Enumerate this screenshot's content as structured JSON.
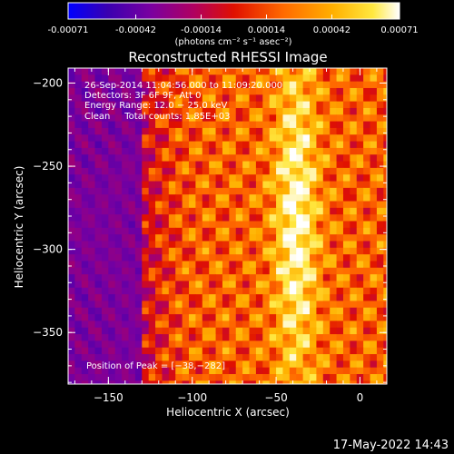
{
  "colorbar": {
    "tick_labels": [
      "-0.00071",
      "-0.00042",
      "-0.00014",
      "0.00014",
      "0.00042",
      "0.00071"
    ],
    "unit_label": "(photons cm⁻² s⁻¹ asec⁻²)",
    "range": [
      -0.00071,
      0.00071
    ]
  },
  "colors": {
    "background": "#000000",
    "text": "#ffffff",
    "colormap": [
      "#0000ff",
      "#3a00b0",
      "#7a00a0",
      "#b00060",
      "#e01000",
      "#ff6a00",
      "#ffb000",
      "#ffe840",
      "#ffffff"
    ]
  },
  "chart_data": {
    "type": "heatmap",
    "title": "Reconstructed RHESSI Image",
    "xlabel": "Heliocentric X (arcsec)",
    "ylabel": "Heliocentric Y (arcsec)",
    "xlim": [
      -174,
      16
    ],
    "ylim": [
      -381,
      -191
    ],
    "x_ticks": [
      -150,
      -100,
      -50,
      0
    ],
    "y_ticks": [
      -200,
      -250,
      -300,
      -350
    ],
    "x_tick_labels": [
      "−150",
      "−100",
      "−50",
      "0"
    ],
    "y_tick_labels": [
      "−200",
      "−250",
      "−300",
      "−350"
    ],
    "info": {
      "time": "26-Sep-2014 11:04:56.000 to 11:09:20.000",
      "detectors": "Detectors: 3F 6F 9F, Att 0",
      "energy": "Energy Range: 12.0 − 25.0 keV",
      "clean": "Clean     Total counts: 1.85E+03"
    },
    "peak_label": "Position of Peak = [−38,−282]",
    "peak": [
      -38,
      -282
    ]
  },
  "footer": {
    "timestamp": "17-May-2022 14:43"
  }
}
